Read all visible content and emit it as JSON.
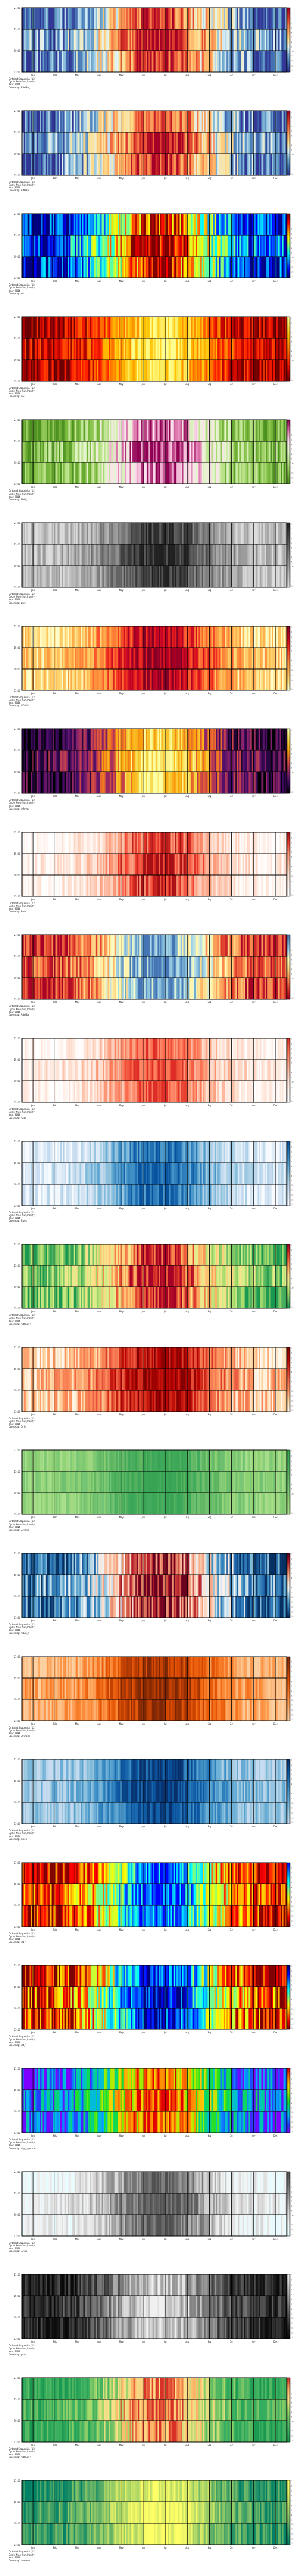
{
  "chart_data": {
    "type": "heatmap",
    "panel_count": 25,
    "x_tick_labels": [
      "Jan",
      "Feb",
      "Mar",
      "Apr",
      "May",
      "Jun",
      "Jul",
      "Aug",
      "Sep",
      "Oct",
      "Nov",
      "Dec"
    ],
    "y_tick_labels": [
      "21:00",
      "15:00",
      "09:00",
      "03:00"
    ],
    "colorbar_tick_labels": [
      "1",
      "2",
      "3",
      "4",
      "5",
      "6",
      "7",
      "8",
      "9",
      "10",
      "11",
      "12",
      "13",
      "14"
    ],
    "panels": [
      {
        "colormap": "RdYlBu_r",
        "meta": [
          "Ordered Sequential (12)",
          "Cycle: Mon–Sun, hourly",
          "Year: 2016",
          "Colormap: RdYlBu_r"
        ]
      },
      {
        "colormap": "RdYlBu",
        "meta": [
          "Ordered Sequential (12)",
          "Cycle: Mon–Sun, hourly",
          "Year: 2016",
          "Colormap: RdYlBu"
        ]
      },
      {
        "colormap": "jet",
        "meta": [
          "Ordered Sequential (12)",
          "Cycle: Mon–Sun, hourly",
          "Year: 2016",
          "Colormap: jet"
        ]
      },
      {
        "colormap": "hot",
        "meta": [
          "Ordered Sequential (12)",
          "Cycle: Mon–Sun, hourly",
          "Year: 2016",
          "Colormap: hot"
        ]
      },
      {
        "colormap": "PiYG_r",
        "meta": [
          "Ordered Sequential (12)",
          "Cycle: Mon–Sun, hourly",
          "Year: 2016",
          "Colormap: PiYG_r"
        ]
      },
      {
        "colormap": "gray",
        "meta": [
          "Ordered Sequential (12)",
          "Cycle: Mon–Sun, hourly",
          "Year: 2016",
          "Colormap: gray"
        ]
      },
      {
        "colormap": "YlOrRd",
        "meta": [
          "Ordered Sequential (12)",
          "Cycle: Mon–Sun, hourly",
          "Year: 2016",
          "Colormap: YlOrRd"
        ]
      },
      {
        "colormap": "inferno",
        "meta": [
          "Ordered Sequential (12)",
          "Cycle: Mon–Sun, hourly",
          "Year: 2016",
          "Colormap: inferno"
        ]
      },
      {
        "colormap": "Reds",
        "meta": [
          "Ordered Sequential (12)",
          "Cycle: Mon–Sun, hourly",
          "Year: 2016",
          "Colormap: Reds"
        ]
      },
      {
        "colormap": "RdYlBu_b",
        "meta": [
          "Ordered Sequential (12)",
          "Cycle: Mon–Sun, hourly",
          "Year: 2016",
          "Colormap: RdYlBu"
        ]
      },
      {
        "colormap": "Reds_l",
        "meta": [
          "Ordered Sequential (12)",
          "Cycle: Mon–Sun, hourly",
          "Year: 2016",
          "Colormap: Reds"
        ]
      },
      {
        "colormap": "Blues",
        "meta": [
          "Ordered Sequential (12)",
          "Cycle: Mon–Sun, hourly",
          "Year: 2016",
          "Colormap: Blues"
        ]
      },
      {
        "colormap": "RdYlGn_r",
        "meta": [
          "Ordered Sequential (12)",
          "Cycle: Mon–Sun, hourly",
          "Year: 2016",
          "Colormap: RdYlGn_r"
        ]
      },
      {
        "colormap": "OrRd",
        "meta": [
          "Ordered Sequential (12)",
          "Cycle: Mon–Sun, hourly",
          "Year: 2016",
          "Colormap: OrRd"
        ]
      },
      {
        "colormap": "Greens",
        "meta": [
          "Ordered Sequential (12)",
          "Cycle: Mon–Sun, hourly",
          "Year: 2016",
          "Colormap: Greens"
        ]
      },
      {
        "colormap": "RdBu_r",
        "meta": [
          "Ordered Sequential (12)",
          "Cycle: Mon–Sun, hourly",
          "Year: 2016",
          "Colormap: RdBu_r"
        ]
      },
      {
        "colormap": "Oranges",
        "meta": [
          "Ordered Sequential (12)",
          "Cycle: Mon–Sun, hourly",
          "Year: 2016",
          "Colormap: Oranges"
        ]
      },
      {
        "colormap": "Blues_d",
        "meta": [
          "Ordered Sequential (12)",
          "Cycle: Mon–Sun, hourly",
          "Year: 2016",
          "Colormap: Blues"
        ]
      },
      {
        "colormap": "jet_r",
        "meta": [
          "Ordered Sequential (12)",
          "Cycle: Mon–Sun, hourly",
          "Year: 2016",
          "Colormap: jet_r"
        ]
      },
      {
        "colormap": "jet_r2",
        "meta": [
          "Ordered Sequential (12)",
          "Cycle: Mon–Sun, hourly",
          "Year: 2016",
          "Colormap: jet_r"
        ]
      },
      {
        "colormap": "nipy",
        "meta": [
          "Ordered Sequential (12)",
          "Cycle: Mon–Sun, hourly",
          "Year: 2016",
          "Colormap: nipy_spectral"
        ]
      },
      {
        "colormap": "Greys",
        "meta": [
          "Ordered Sequential (12)",
          "Cycle: Mon–Sun, hourly",
          "Year: 2016",
          "Colormap: Greys"
        ]
      },
      {
        "colormap": "gray_r",
        "meta": [
          "Ordered Sequential (12)",
          "Cycle: Mon–Sun, hourly",
          "Year: 2016",
          "Colormap: gray"
        ]
      },
      {
        "colormap": "RdYlGn_r2",
        "meta": [
          "Ordered Sequential (12)",
          "Cycle: Mon–Sun, hourly",
          "Year: 2016",
          "Colormap: RdYlGn_r"
        ]
      },
      {
        "colormap": "summer",
        "meta": [
          "Ordered Sequential (12)",
          "Cycle: Mon–Sun, hourly",
          "Year: 2016",
          "Colormap: summer"
        ]
      }
    ]
  }
}
